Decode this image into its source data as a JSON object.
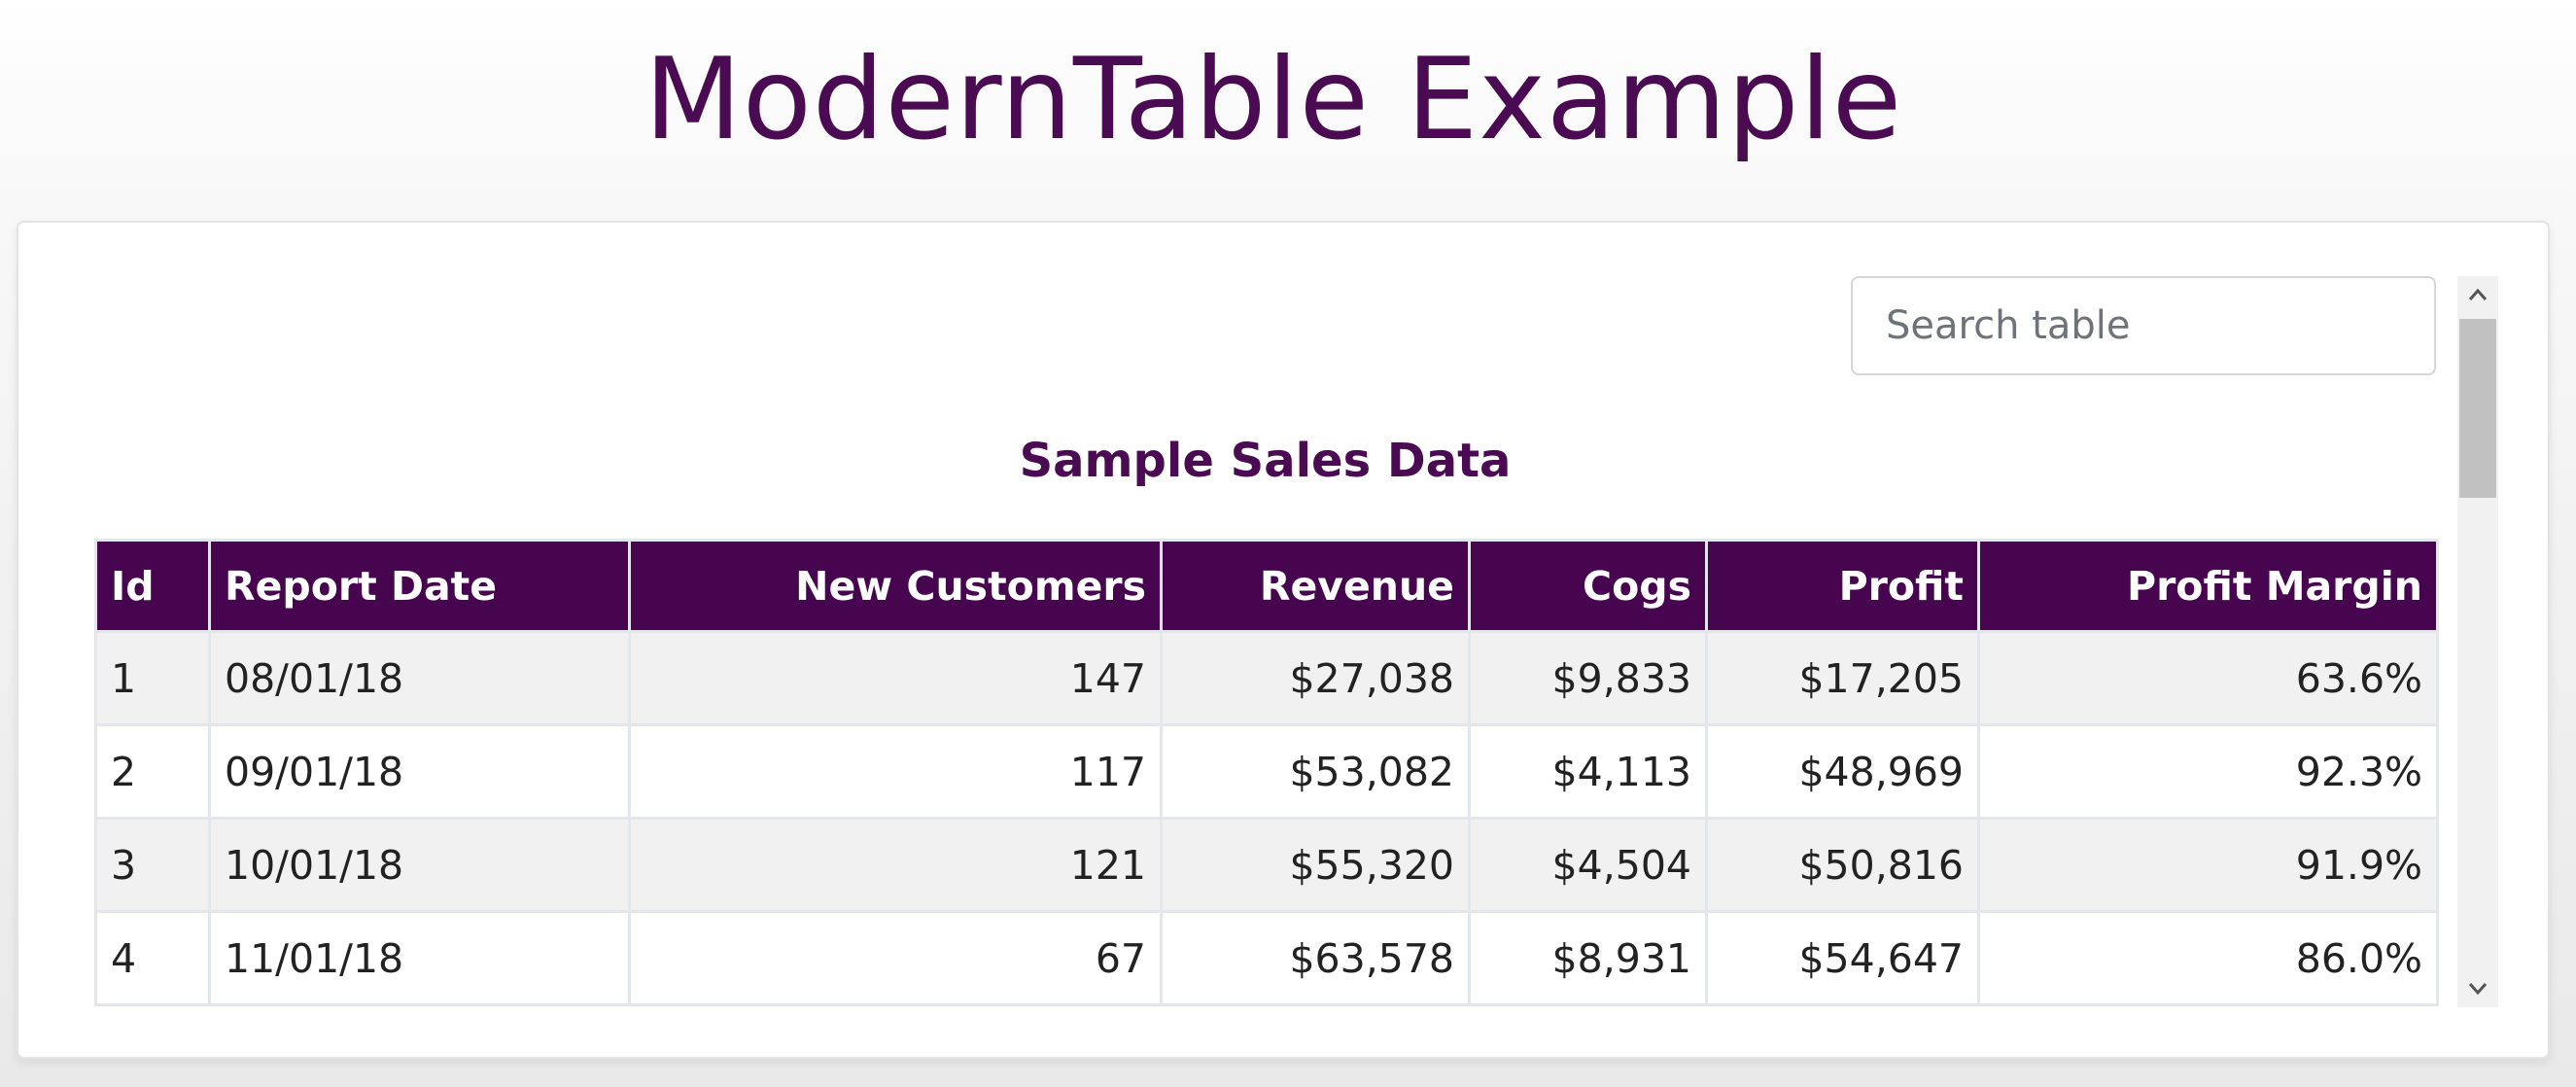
{
  "page": {
    "title": "ModernTable Example"
  },
  "search": {
    "placeholder": "Search table",
    "value": ""
  },
  "table": {
    "caption": "Sample Sales Data",
    "columns": [
      "Id",
      "Report Date",
      "New Customers",
      "Revenue",
      "Cogs",
      "Profit",
      "Profit Margin"
    ],
    "rows": [
      [
        "1",
        "08/01/18",
        "147",
        "$27,038",
        "$9,833",
        "$17,205",
        "63.6%"
      ],
      [
        "2",
        "09/01/18",
        "117",
        "$53,082",
        "$4,113",
        "$48,969",
        "92.3%"
      ],
      [
        "3",
        "10/01/18",
        "121",
        "$55,320",
        "$4,504",
        "$50,816",
        "91.9%"
      ],
      [
        "4",
        "11/01/18",
        "67",
        "$63,578",
        "$8,931",
        "$54,647",
        "86.0%"
      ]
    ]
  },
  "icons": {
    "scroll_up": "chevron-up-icon",
    "scroll_down": "chevron-down-icon"
  },
  "colors": {
    "accent": "#47044f",
    "title": "#4b0b52",
    "row_stripe": "#f1f1f1",
    "border": "#e3e6ea"
  }
}
